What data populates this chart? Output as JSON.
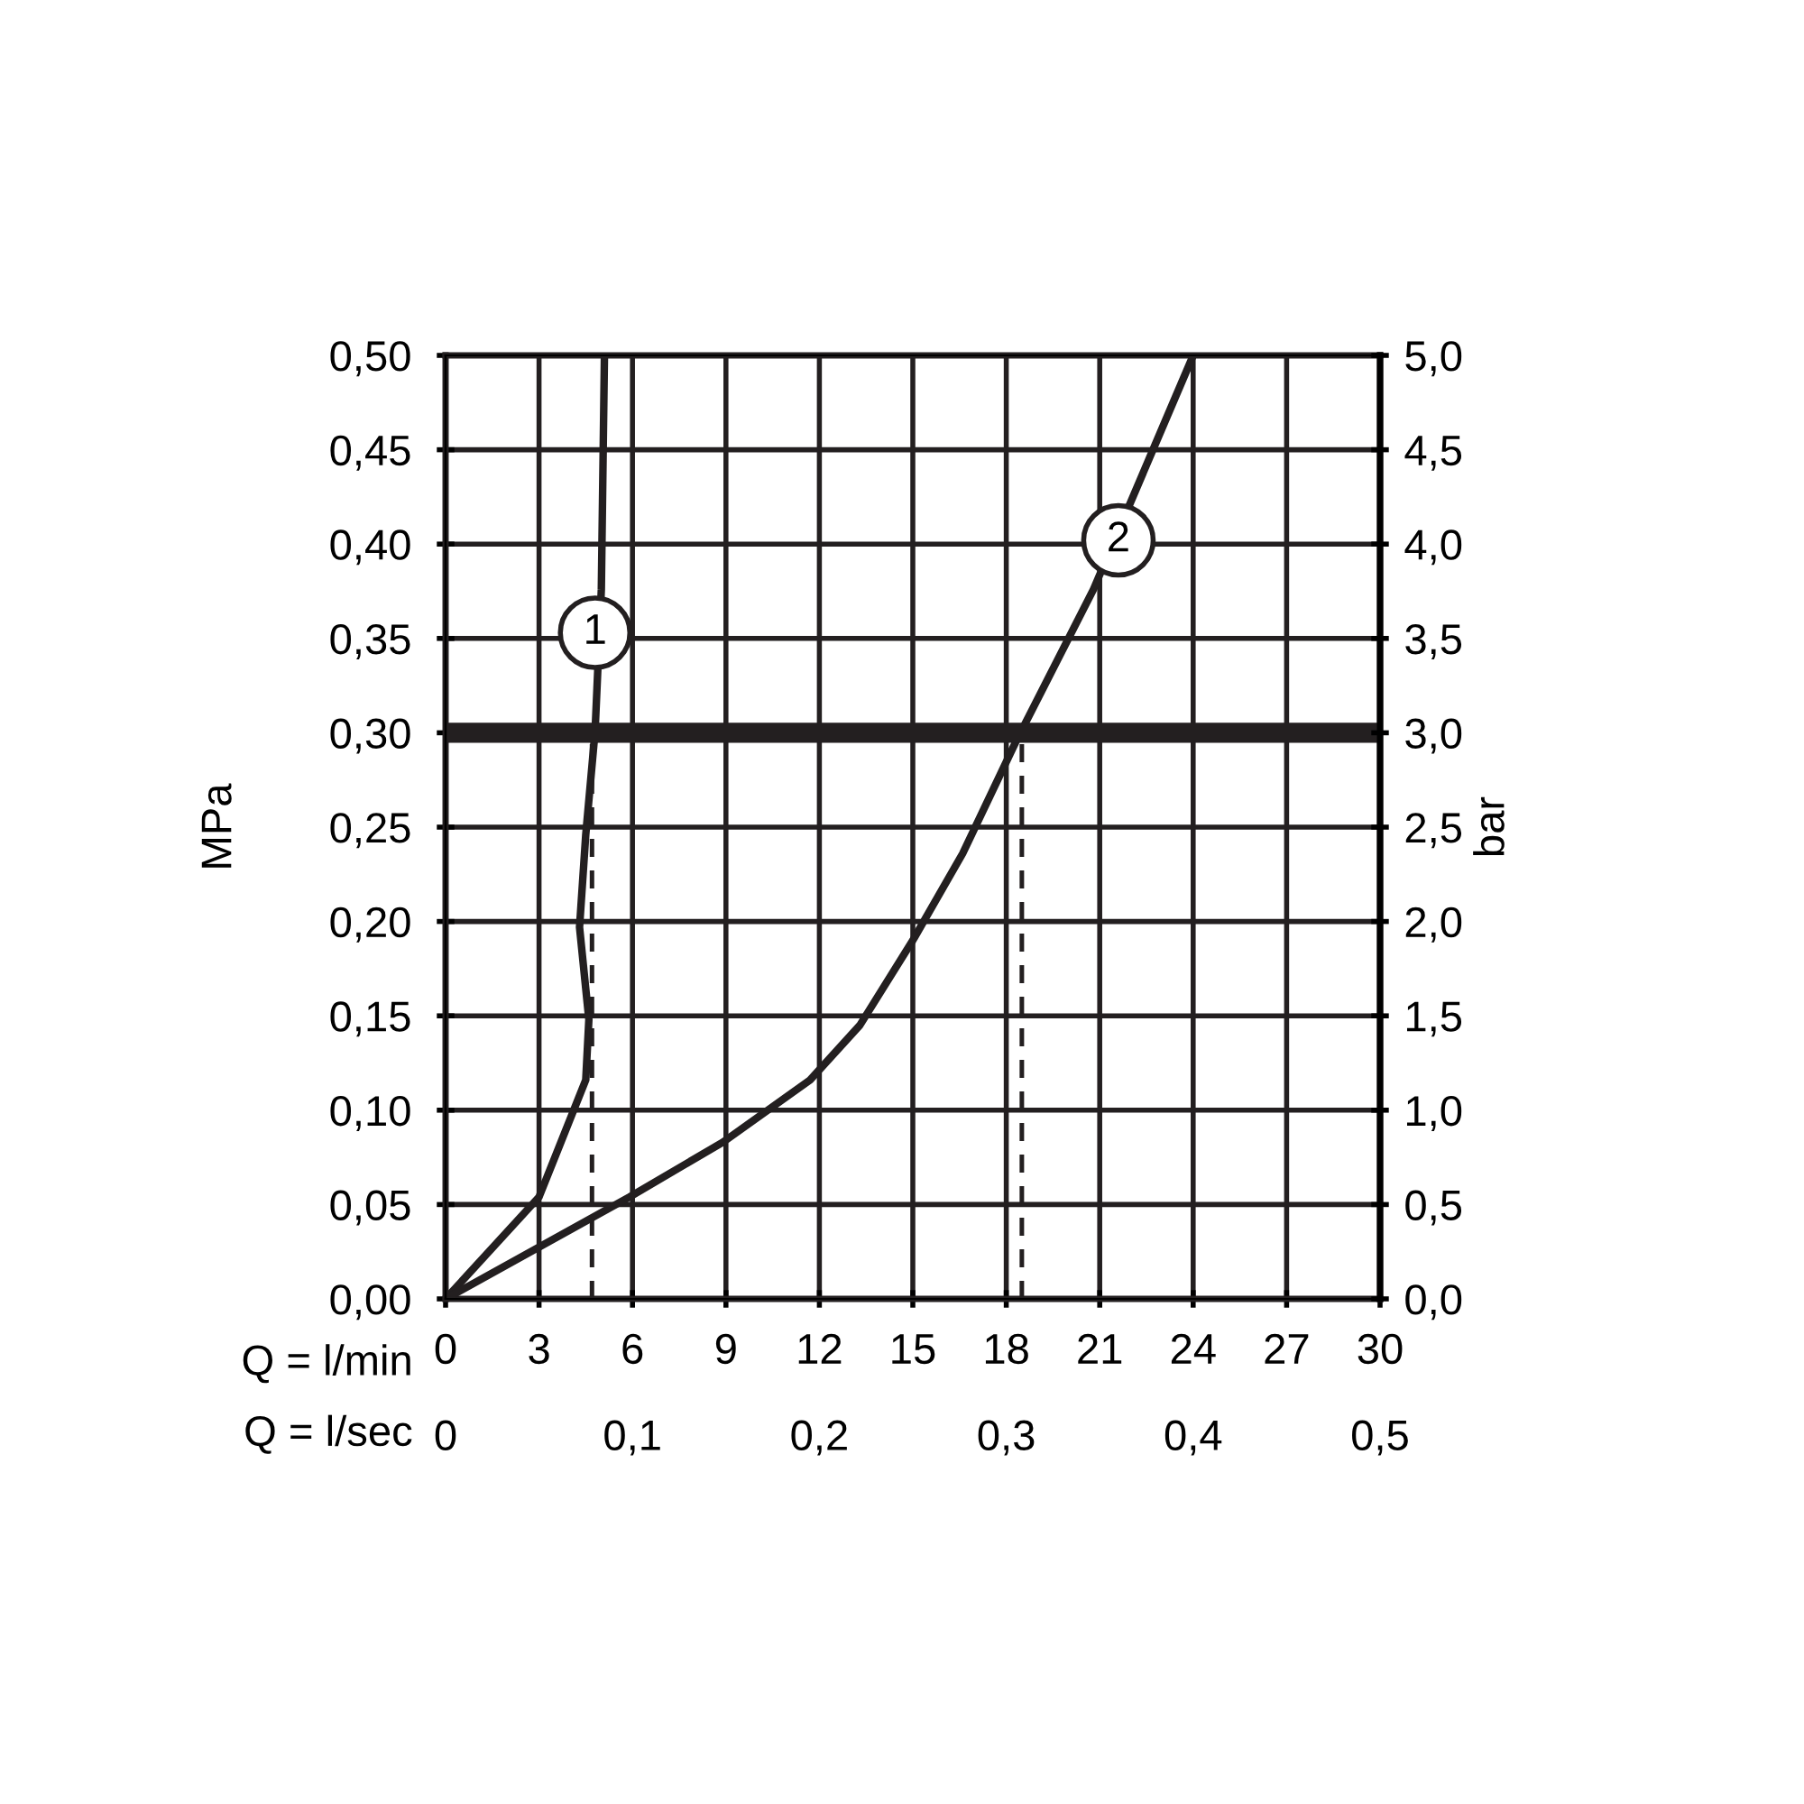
{
  "chart_data": {
    "type": "line",
    "xlabel": "Q = l/min",
    "x2label": "Q = l/sec",
    "ylabel": "MPa",
    "y2label": "bar",
    "xlim": [
      0,
      30
    ],
    "xticks": [
      0,
      3,
      6,
      9,
      12,
      15,
      18,
      21,
      24,
      27,
      30
    ],
    "x2lim": [
      0,
      0.5
    ],
    "x2ticks": [
      {
        "value": 0,
        "label": "0"
      },
      {
        "value": 0.1,
        "label": "0,1"
      },
      {
        "value": 0.2,
        "label": "0,2"
      },
      {
        "value": 0.3,
        "label": "0,3"
      },
      {
        "value": 0.4,
        "label": "0,4"
      },
      {
        "value": 0.5,
        "label": "0,5"
      }
    ],
    "ylim": [
      0,
      0.5
    ],
    "yticks": [
      {
        "value": 0,
        "label": "0,00"
      },
      {
        "value": 0.05,
        "label": "0,05"
      },
      {
        "value": 0.1,
        "label": "0,10"
      },
      {
        "value": 0.15,
        "label": "0,15"
      },
      {
        "value": 0.2,
        "label": "0,20"
      },
      {
        "value": 0.25,
        "label": "0,25"
      },
      {
        "value": 0.3,
        "label": "0,30"
      },
      {
        "value": 0.35,
        "label": "0,35"
      },
      {
        "value": 0.4,
        "label": "0,40"
      },
      {
        "value": 0.45,
        "label": "0,45"
      },
      {
        "value": 0.5,
        "label": "0,50"
      }
    ],
    "y2lim": [
      0,
      5
    ],
    "y2ticks": [
      {
        "value": 0,
        "label": "0,0"
      },
      {
        "value": 0.5,
        "label": "0,5"
      },
      {
        "value": 1,
        "label": "1,0"
      },
      {
        "value": 1.5,
        "label": "1,5"
      },
      {
        "value": 2,
        "label": "2,0"
      },
      {
        "value": 2.5,
        "label": "2,5"
      },
      {
        "value": 3,
        "label": "3,0"
      },
      {
        "value": 3.5,
        "label": "3,5"
      },
      {
        "value": 4,
        "label": "4,0"
      },
      {
        "value": 4.5,
        "label": "4,5"
      },
      {
        "value": 5,
        "label": "5,0"
      }
    ],
    "grid": true,
    "series": [
      {
        "color": "#231f20",
        "x": [
          0,
          3.0,
          4.5,
          4.6,
          4.3,
          4.5,
          4.8,
          5.0,
          5.1
        ],
        "values": [
          0,
          0.054,
          0.116,
          0.148,
          0.197,
          0.246,
          0.301,
          0.376,
          0.5
        ]
      },
      {
        "color": "#231f20",
        "x": [
          0,
          5.9,
          8.9,
          11.7,
          13.3,
          15.0,
          16.6,
          18.3,
          20.8,
          24.0
        ],
        "values": [
          0,
          0.054,
          0.083,
          0.116,
          0.145,
          0.19,
          0.236,
          0.295,
          0.376,
          0.5
        ]
      },
      {
        "color": "#231f20",
        "line_style": "dashed",
        "x": [
          4.7,
          4.7
        ],
        "values": [
          0,
          0.3
        ]
      },
      {
        "color": "#231f20",
        "line_style": "dashed",
        "x": [
          18.5,
          18.5
        ],
        "values": [
          0,
          0.3
        ]
      }
    ],
    "ref_lines": [
      {
        "axis": "y",
        "value": 0.3,
        "color": "#231f20"
      }
    ],
    "annotations": [
      {
        "text": "1",
        "x": 4.8,
        "y": 0.353
      },
      {
        "text": "2",
        "x": 21.6,
        "y": 0.402
      }
    ]
  }
}
